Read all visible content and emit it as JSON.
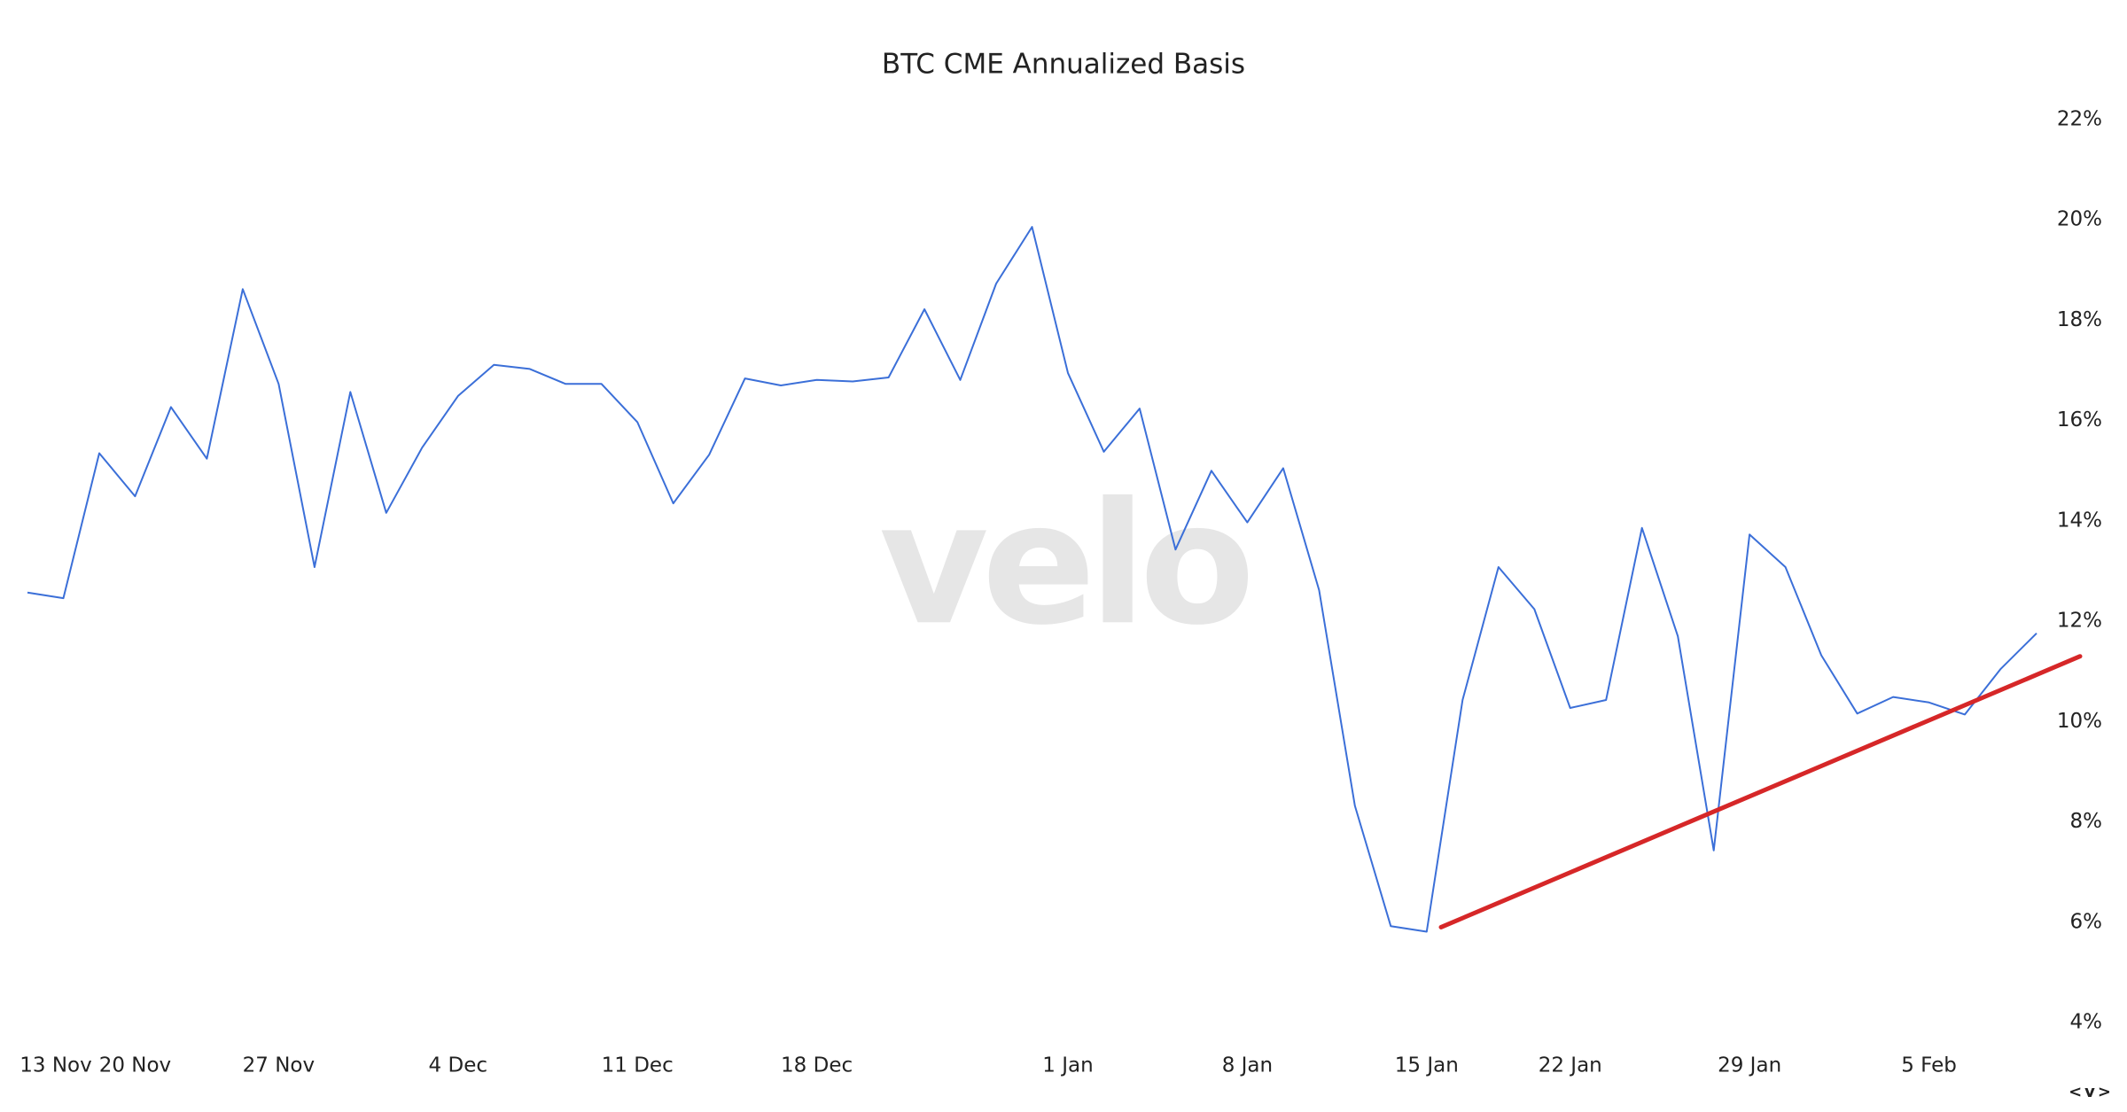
{
  "chart_data": {
    "type": "line",
    "title": "BTC CME Annualized Basis",
    "watermark": "velo",
    "corner_label": "<v>",
    "categories": [
      "13 Nov",
      null,
      null,
      "20 Nov",
      null,
      null,
      null,
      "27 Nov",
      null,
      null,
      null,
      null,
      "4 Dec",
      null,
      null,
      null,
      null,
      "11 Dec",
      null,
      null,
      null,
      null,
      "18 Dec",
      null,
      null,
      null,
      null,
      null,
      null,
      "1 Jan",
      null,
      null,
      null,
      null,
      "8 Jan",
      null,
      null,
      null,
      null,
      "15 Jan",
      null,
      null,
      null,
      "22 Jan",
      null,
      null,
      null,
      null,
      "29 Jan",
      null,
      null,
      null,
      null,
      "5 Feb",
      null,
      null,
      null
    ],
    "series": [
      {
        "name": "BTC CME Annualized Basis",
        "color": "#3b6fd8",
        "values": [
          12.57,
          12.46,
          15.35,
          14.49,
          16.27,
          15.24,
          18.62,
          16.73,
          13.08,
          16.57,
          14.16,
          15.46,
          16.49,
          17.11,
          17.03,
          16.73,
          16.73,
          15.97,
          14.35,
          15.32,
          16.84,
          16.7,
          16.81,
          16.78,
          16.86,
          18.22,
          16.81,
          18.73,
          19.86,
          16.95,
          15.38,
          16.24,
          13.43,
          15.0,
          13.97,
          15.05,
          12.62,
          8.32,
          5.92,
          5.81,
          10.43,
          13.08,
          12.24,
          10.27,
          10.43,
          13.86,
          11.7,
          7.43,
          13.73,
          13.08,
          11.32,
          10.16,
          10.49,
          10.38,
          10.14,
          11.05,
          11.76
        ]
      }
    ],
    "trendline": {
      "color": "#d62728",
      "values": [
        5.9,
        11.3
      ]
    },
    "ylim": [
      4,
      22
    ],
    "yticks": [
      {
        "value": 4,
        "label": "4%"
      },
      {
        "value": 6,
        "label": "6%"
      },
      {
        "value": 8,
        "label": "8%"
      },
      {
        "value": 10,
        "label": "10%"
      },
      {
        "value": 12,
        "label": "12%"
      },
      {
        "value": 14,
        "label": "14%"
      },
      {
        "value": 16,
        "label": "16%"
      },
      {
        "value": 18,
        "label": "18%"
      },
      {
        "value": 20,
        "label": "20%"
      },
      {
        "value": 22,
        "label": "22%"
      }
    ],
    "grid": false
  }
}
